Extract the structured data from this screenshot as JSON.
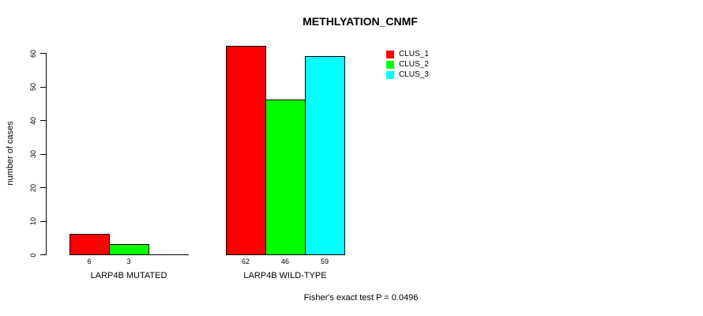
{
  "chart_data": {
    "type": "bar",
    "title": "METHLYATION_CNMF",
    "ylabel": "number of cases",
    "xlabel": "",
    "ylim": [
      0,
      60
    ],
    "yticks": [
      0,
      10,
      20,
      30,
      40,
      50,
      60
    ],
    "categories": [
      "LARP4B MUTATED",
      "LARP4B WILD-TYPE"
    ],
    "series": [
      {
        "name": "CLUS_1",
        "color": "#ff0000",
        "values": [
          6,
          62
        ]
      },
      {
        "name": "CLUS_2",
        "color": "#00ff00",
        "values": [
          3,
          46
        ]
      },
      {
        "name": "CLUS_3",
        "color": "#00ffff",
        "values": [
          0,
          59
        ]
      }
    ],
    "grid": false,
    "legend_position": "top-right-inside",
    "annotation": "Fisher's exact test P = 0.0496"
  }
}
